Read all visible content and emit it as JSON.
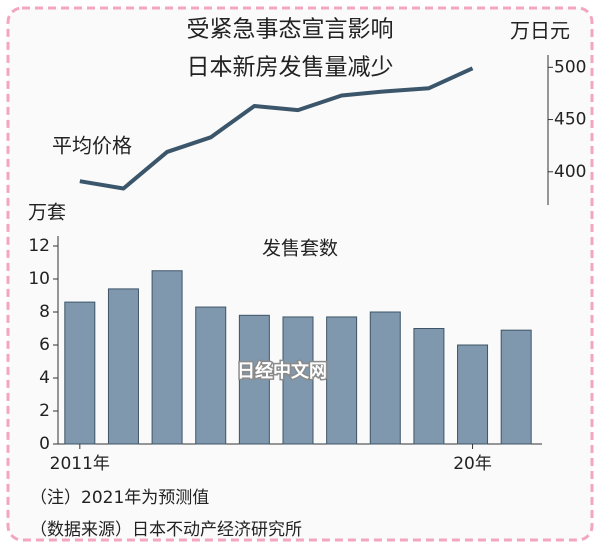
{
  "title": [
    "受紧急事态宣言影响",
    "日本新房发售量减少"
  ],
  "watermark": "日经中文网",
  "notes": [
    "（注）2021年为预测值",
    "（数据来源）日本不动产经济研究所"
  ],
  "chart_data": [
    {
      "type": "line",
      "label": "平均价格",
      "axis_title": "万日元",
      "axis_side": "right",
      "categories": [
        "2011年",
        null,
        null,
        null,
        null,
        null,
        null,
        null,
        null,
        "20年",
        null
      ],
      "values": [
        391,
        384,
        419,
        433,
        463,
        459,
        473,
        477,
        480,
        499,
        null
      ],
      "color": "#3b566b",
      "ylim": [
        373,
        507
      ],
      "yticks": [
        400,
        450,
        500
      ]
    },
    {
      "type": "bar",
      "title": "发售套数",
      "axis_title": "万套",
      "categories": [
        "2011年",
        null,
        null,
        null,
        null,
        null,
        null,
        null,
        null,
        "20年",
        null
      ],
      "values": [
        8.6,
        9.4,
        10.5,
        8.3,
        7.8,
        7.7,
        7.7,
        8.0,
        7.0,
        6.0,
        6.9
      ],
      "color": "#7f98ae",
      "ylim": [
        0,
        12
      ],
      "yticks": [
        0,
        2,
        4,
        6,
        8,
        10,
        12
      ]
    }
  ]
}
